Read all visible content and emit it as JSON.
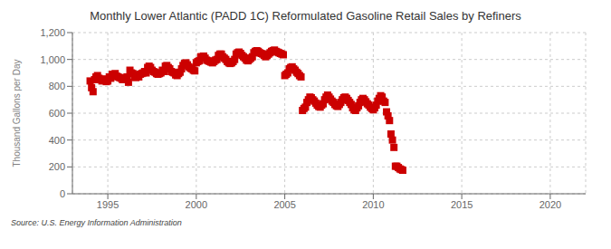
{
  "chart_data": {
    "type": "scatter",
    "title": "Monthly Lower Atlantic (PADD 1C) Reformulated Gasoline Retail Sales by Refiners",
    "y_label": "Thousand Gallons per Day",
    "annotations": [
      "Source: U.S. Energy Information Administration"
    ],
    "color": "#cc0000",
    "marker": "square",
    "grid": true,
    "xlim": [
      1993.0,
      2022.0
    ],
    "ylim": [
      0,
      1200
    ],
    "xticks": [
      1995,
      2000,
      2005,
      2010,
      2015,
      2020
    ],
    "yticks": [
      0,
      200,
      400,
      600,
      800,
      {
        "value": 1000,
        "label": "1,000"
      },
      {
        "value": 1200,
        "label": "1,200"
      }
    ],
    "x": [
      1994.0,
      1994.083,
      1994.167,
      1994.25,
      1994.333,
      1994.417,
      1994.5,
      1994.583,
      1994.667,
      1994.75,
      1994.833,
      1994.917,
      1995.0,
      1995.083,
      1995.167,
      1995.25,
      1995.333,
      1995.417,
      1995.5,
      1995.583,
      1995.667,
      1995.75,
      1995.833,
      1995.917,
      1996.0,
      1996.083,
      1996.167,
      1996.25,
      1996.333,
      1996.417,
      1996.5,
      1996.583,
      1996.667,
      1996.75,
      1996.833,
      1996.917,
      1997.0,
      1997.083,
      1997.167,
      1997.25,
      1997.333,
      1997.417,
      1997.5,
      1997.583,
      1997.667,
      1997.75,
      1997.833,
      1997.917,
      1998.0,
      1998.083,
      1998.167,
      1998.25,
      1998.333,
      1998.417,
      1998.5,
      1998.583,
      1998.667,
      1998.75,
      1998.833,
      1998.917,
      1999.0,
      1999.083,
      1999.167,
      1999.25,
      1999.333,
      1999.417,
      1999.5,
      1999.583,
      1999.667,
      1999.75,
      1999.833,
      1999.917,
      2000.0,
      2000.083,
      2000.167,
      2000.25,
      2000.333,
      2000.417,
      2000.5,
      2000.583,
      2000.667,
      2000.75,
      2000.833,
      2000.917,
      2001.0,
      2001.083,
      2001.167,
      2001.25,
      2001.333,
      2001.417,
      2001.5,
      2001.583,
      2001.667,
      2001.75,
      2001.833,
      2001.917,
      2002.0,
      2002.083,
      2002.167,
      2002.25,
      2002.333,
      2002.417,
      2002.5,
      2002.583,
      2002.667,
      2002.75,
      2002.833,
      2002.917,
      2003.0,
      2003.083,
      2003.167,
      2003.25,
      2003.333,
      2003.417,
      2003.5,
      2003.583,
      2003.667,
      2003.75,
      2003.833,
      2003.917,
      2004.0,
      2004.083,
      2004.167,
      2004.25,
      2004.333,
      2004.417,
      2004.5,
      2004.583,
      2004.667,
      2004.75,
      2004.833,
      2004.917,
      2005.0,
      2005.083,
      2005.167,
      2005.25,
      2005.333,
      2005.417,
      2005.5,
      2005.583,
      2005.667,
      2005.75,
      2005.833,
      2005.917,
      2006.0,
      2006.083,
      2006.167,
      2006.25,
      2006.333,
      2006.417,
      2006.5,
      2006.583,
      2006.667,
      2006.75,
      2006.833,
      2006.917,
      2007.0,
      2007.083,
      2007.167,
      2007.25,
      2007.333,
      2007.417,
      2007.5,
      2007.583,
      2007.667,
      2007.75,
      2007.833,
      2007.917,
      2008.0,
      2008.083,
      2008.167,
      2008.25,
      2008.333,
      2008.417,
      2008.5,
      2008.583,
      2008.667,
      2008.75,
      2008.833,
      2008.917,
      2009.0,
      2009.083,
      2009.167,
      2009.25,
      2009.333,
      2009.417,
      2009.5,
      2009.583,
      2009.667,
      2009.75,
      2009.833,
      2009.917,
      2010.0,
      2010.083,
      2010.167,
      2010.25,
      2010.333,
      2010.417,
      2010.5,
      2010.583,
      2010.667,
      2010.75,
      2010.833,
      2010.917,
      2011.0,
      2011.083,
      2011.167,
      2011.25,
      2011.333,
      2011.417,
      2011.5,
      2011.583,
      2011.667
    ],
    "values": [
      840,
      790,
      760,
      850,
      870,
      880,
      860,
      850,
      840,
      855,
      845,
      835,
      840,
      870,
      860,
      890,
      880,
      895,
      875,
      870,
      865,
      860,
      850,
      855,
      860,
      870,
      830,
      920,
      900,
      895,
      870,
      865,
      885,
      870,
      890,
      895,
      900,
      910,
      900,
      940,
      950,
      940,
      920,
      910,
      905,
      895,
      890,
      895,
      900,
      920,
      910,
      950,
      955,
      940,
      930,
      910,
      905,
      900,
      885,
      880,
      895,
      905,
      930,
      955,
      970,
      975,
      960,
      945,
      935,
      930,
      920,
      915,
      975,
      985,
      990,
      1020,
      1020,
      1025,
      1010,
      995,
      990,
      985,
      980,
      975,
      985,
      995,
      1000,
      1030,
      1040,
      1040,
      1020,
      1010,
      1000,
      985,
      975,
      970,
      975,
      985,
      1000,
      1040,
      1050,
      1055,
      1045,
      1030,
      1020,
      1010,
      995,
      990,
      1000,
      1010,
      1020,
      1050,
      1060,
      1065,
      1060,
      1050,
      1045,
      1040,
      1030,
      1020,
      1030,
      1040,
      1050,
      1060,
      1065,
      1070,
      1060,
      1055,
      1050,
      1045,
      1040,
      1035,
      880,
      890,
      900,
      930,
      940,
      945,
      930,
      920,
      905,
      895,
      880,
      870,
      620,
      635,
      645,
      680,
      700,
      720,
      715,
      700,
      690,
      675,
      660,
      650,
      645,
      660,
      670,
      700,
      720,
      735,
      720,
      705,
      690,
      680,
      665,
      655,
      650,
      665,
      680,
      700,
      715,
      720,
      710,
      695,
      680,
      665,
      640,
      625,
      620,
      640,
      655,
      680,
      700,
      710,
      700,
      685,
      670,
      660,
      645,
      635,
      625,
      640,
      660,
      690,
      710,
      730,
      720,
      690,
      680,
      610,
      580,
      545,
      445,
      400,
      345,
      205,
      205,
      195,
      185,
      180,
      175
    ]
  }
}
